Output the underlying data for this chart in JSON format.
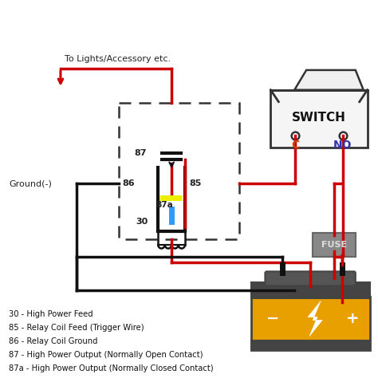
{
  "bg_color": "#ffffff",
  "legend_lines": [
    "30 - High Power Feed",
    "85 - Relay Coil Feed (Trigger Wire)",
    "86 - Relay Coil Ground",
    "87 - High Power Output (Normally Open Contact)",
    "87a - High Power Output (Normally Closed Contact)"
  ],
  "switch_c_color": "#cc4400",
  "switch_no_color": "#3333aa",
  "fuse_body_color": "#888888",
  "fuse_text_color": "#dddddd",
  "battery_yellow": "#e8a000",
  "battery_dark": "#444444",
  "battery_handle": "#555555",
  "red_wire": "#cc0000",
  "black_wire": "#111111",
  "yellow_bar": "#eeee00",
  "blue_seg": "#3399ff",
  "ground_label": "Ground(-)",
  "to_lights_label": "To Lights/Accessory etc."
}
